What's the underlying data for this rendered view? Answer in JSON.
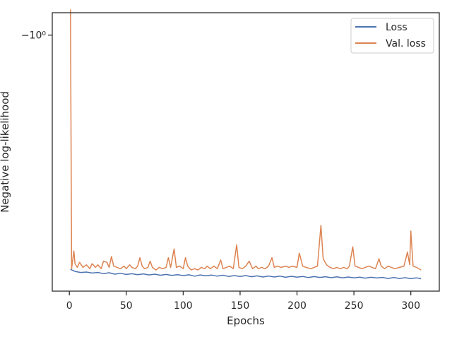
{
  "chart_data": {
    "type": "line",
    "title": "",
    "xlabel": "Epochs",
    "ylabel": "Negative log-likelihood",
    "xlim": [
      -15,
      325
    ],
    "ylim": [
      -0.05,
      -1.3
    ],
    "yscale": "symlog (reversed)",
    "x_ticks": [
      0,
      50,
      100,
      150,
      200,
      250,
      300
    ],
    "x_tick_labels": [
      "0",
      "50",
      "100",
      "150",
      "200",
      "250",
      "300"
    ],
    "y_ticks": [
      -1
    ],
    "y_tick_labels": [
      "−10⁰"
    ],
    "grid": false,
    "legend_position": "top-right",
    "series": [
      {
        "name": "Loss",
        "color": "#4c72b0",
        "x": [
          1,
          5,
          10,
          15,
          20,
          25,
          30,
          35,
          40,
          45,
          50,
          55,
          60,
          65,
          70,
          75,
          80,
          85,
          90,
          95,
          100,
          105,
          110,
          115,
          120,
          125,
          130,
          135,
          140,
          145,
          150,
          155,
          160,
          165,
          170,
          175,
          180,
          185,
          190,
          195,
          200,
          205,
          210,
          215,
          220,
          225,
          230,
          235,
          240,
          245,
          250,
          255,
          260,
          265,
          270,
          275,
          280,
          285,
          290,
          295,
          300,
          305,
          309
        ],
        "values": [
          -0.0645,
          -0.063,
          -0.0622,
          -0.0625,
          -0.0618,
          -0.0622,
          -0.0614,
          -0.062,
          -0.061,
          -0.0616,
          -0.0608,
          -0.0613,
          -0.0606,
          -0.0612,
          -0.0604,
          -0.061,
          -0.0602,
          -0.0608,
          -0.0601,
          -0.0606,
          -0.06,
          -0.0605,
          -0.0596,
          -0.0604,
          -0.0598,
          -0.0603,
          -0.0596,
          -0.0602,
          -0.0594,
          -0.06,
          -0.0594,
          -0.06,
          -0.0592,
          -0.0598,
          -0.059,
          -0.0597,
          -0.059,
          -0.0596,
          -0.0588,
          -0.0595,
          -0.0589,
          -0.0594,
          -0.0586,
          -0.0593,
          -0.0587,
          -0.0592,
          -0.0585,
          -0.0591,
          -0.0584,
          -0.059,
          -0.0584,
          -0.0589,
          -0.0582,
          -0.0588,
          -0.0583,
          -0.0587,
          -0.058,
          -0.0586,
          -0.058,
          -0.0585,
          -0.0579,
          -0.0584,
          -0.0578
        ]
      },
      {
        "name": "Val. loss",
        "color": "#dd8452",
        "x": [
          1,
          2,
          3,
          4,
          5,
          7,
          9,
          12,
          15,
          18,
          20,
          23,
          25,
          28,
          30,
          33,
          35,
          37,
          39,
          42,
          45,
          48,
          50,
          53,
          55,
          58,
          60,
          62,
          64,
          66,
          69,
          71,
          73,
          76,
          79,
          82,
          85,
          87,
          89,
          92,
          94,
          97,
          100,
          102,
          104,
          107,
          110,
          113,
          116,
          119,
          121,
          124,
          127,
          130,
          133,
          135,
          138,
          141,
          144,
          147,
          149,
          152,
          155,
          158,
          161,
          164,
          166,
          169,
          172,
          175,
          178,
          180,
          183,
          186,
          190,
          193,
          196,
          200,
          202,
          205,
          208,
          212,
          215,
          218,
          221,
          223,
          226,
          229,
          232,
          235,
          238,
          241,
          244,
          246,
          249,
          251,
          254,
          257,
          260,
          263,
          266,
          269,
          272,
          274,
          277,
          280,
          283,
          286,
          290,
          294,
          297,
          299,
          300,
          302,
          305,
          309
        ],
        "values": [
          -1.35,
          -0.065,
          -0.072,
          -0.08,
          -0.069,
          -0.066,
          -0.07,
          -0.066,
          -0.068,
          -0.065,
          -0.069,
          -0.066,
          -0.068,
          -0.065,
          -0.071,
          -0.07,
          -0.066,
          -0.075,
          -0.067,
          -0.066,
          -0.065,
          -0.067,
          -0.065,
          -0.068,
          -0.066,
          -0.065,
          -0.067,
          -0.074,
          -0.067,
          -0.065,
          -0.066,
          -0.071,
          -0.066,
          -0.064,
          -0.066,
          -0.065,
          -0.066,
          -0.074,
          -0.066,
          -0.082,
          -0.066,
          -0.067,
          -0.065,
          -0.074,
          -0.067,
          -0.064,
          -0.065,
          -0.064,
          -0.066,
          -0.065,
          -0.067,
          -0.065,
          -0.067,
          -0.065,
          -0.072,
          -0.065,
          -0.066,
          -0.067,
          -0.065,
          -0.086,
          -0.066,
          -0.065,
          -0.067,
          -0.071,
          -0.065,
          -0.067,
          -0.065,
          -0.066,
          -0.065,
          -0.067,
          -0.074,
          -0.066,
          -0.067,
          -0.066,
          -0.067,
          -0.066,
          -0.067,
          -0.066,
          -0.078,
          -0.067,
          -0.066,
          -0.065,
          -0.066,
          -0.067,
          -0.108,
          -0.073,
          -0.068,
          -0.066,
          -0.065,
          -0.066,
          -0.065,
          -0.066,
          -0.065,
          -0.067,
          -0.084,
          -0.067,
          -0.066,
          -0.065,
          -0.066,
          -0.067,
          -0.066,
          -0.065,
          -0.073,
          -0.067,
          -0.065,
          -0.067,
          -0.066,
          -0.065,
          -0.066,
          -0.067,
          -0.079,
          -0.068,
          -0.101,
          -0.067,
          -0.066,
          -0.064
        ]
      }
    ]
  }
}
